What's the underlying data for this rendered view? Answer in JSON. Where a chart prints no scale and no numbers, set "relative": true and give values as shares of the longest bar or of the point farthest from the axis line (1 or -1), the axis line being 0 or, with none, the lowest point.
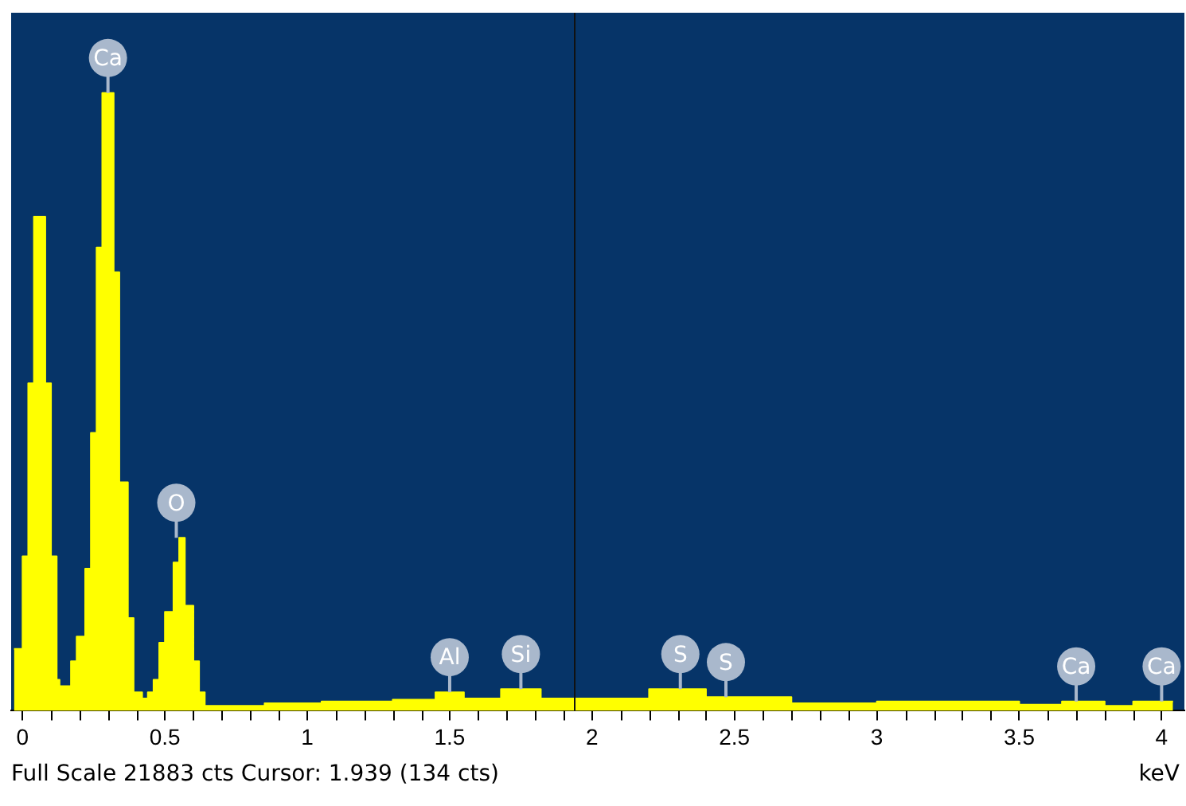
{
  "chart_data": {
    "type": "area",
    "relative": true,
    "xlabel": "keV",
    "color": "#ffff00",
    "marker": "none",
    "x": [
      -0.03,
      0,
      0,
      0.02,
      0.02,
      0.04,
      0.04,
      0.08,
      0.08,
      0.1,
      0.1,
      0.12,
      0.12,
      0.13,
      0.13,
      0.17,
      0.17,
      0.19,
      0.19,
      0.22,
      0.22,
      0.24,
      0.24,
      0.26,
      0.26,
      0.28,
      0.28,
      0.32,
      0.32,
      0.34,
      0.34,
      0.37,
      0.37,
      0.39,
      0.39,
      0.42,
      0.42,
      0.44,
      0.44,
      0.46,
      0.46,
      0.48,
      0.48,
      0.5,
      0.5,
      0.53,
      0.53,
      0.55,
      0.55,
      0.57,
      0.57,
      0.6,
      0.6,
      0.62,
      0.62,
      0.64,
      0.64,
      0.85,
      0.85,
      1.05,
      1.05,
      1.3,
      1.3,
      1.45,
      1.45,
      1.55,
      1.55,
      1.68,
      1.68,
      1.82,
      1.82,
      1.94,
      1.94,
      2.2,
      2.2,
      2.4,
      2.4,
      2.7,
      2.7,
      3,
      3,
      3.5,
      3.5,
      3.65,
      3.65,
      3.8,
      3.8,
      3.9,
      3.9,
      4.04
    ],
    "values": [
      0.1,
      0.1,
      0.25,
      0.25,
      0.53,
      0.53,
      0.8,
      0.8,
      0.53,
      0.53,
      0.25,
      0.25,
      0.05,
      0.05,
      0.04,
      0.04,
      0.08,
      0.08,
      0.12,
      0.12,
      0.23,
      0.23,
      0.45,
      0.45,
      0.75,
      0.75,
      1,
      1,
      0.71,
      0.71,
      0.37,
      0.37,
      0.15,
      0.15,
      0.03,
      0.03,
      0.02,
      0.02,
      0.03,
      0.03,
      0.05,
      0.05,
      0.11,
      0.11,
      0.16,
      0.16,
      0.24,
      0.24,
      0.28,
      0.28,
      0.17,
      0.17,
      0.08,
      0.08,
      0.03,
      0.03,
      0.008,
      0.008,
      0.012,
      0.012,
      0.015,
      0.015,
      0.018,
      0.018,
      0.03,
      0.03,
      0.02,
      0.02,
      0.035,
      0.035,
      0.02,
      0.02,
      0.02,
      0.02,
      0.035,
      0.035,
      0.022,
      0.022,
      0.012,
      0.012,
      0.015,
      0.015,
      0.01,
      0.01,
      0.015,
      0.015,
      0.008,
      0.008,
      0.015,
      0.015
    ],
    "xlim": [
      -0.04,
      4.08
    ],
    "xticks": [
      0,
      {
        "value": 0.1,
        "label": null
      },
      {
        "value": 0.2,
        "label": null
      },
      {
        "value": 0.3,
        "label": null
      },
      {
        "value": 0.4,
        "label": null
      },
      0.5,
      {
        "value": 0.6,
        "label": null
      },
      {
        "value": 0.7,
        "label": null
      },
      {
        "value": 0.8,
        "label": null
      },
      {
        "value": 0.9,
        "label": null
      },
      1,
      {
        "value": 1.1,
        "label": null
      },
      {
        "value": 1.2,
        "label": null
      },
      {
        "value": 1.3,
        "label": null
      },
      {
        "value": 1.4,
        "label": null
      },
      1.5,
      {
        "value": 1.6,
        "label": null
      },
      {
        "value": 1.7,
        "label": null
      },
      {
        "value": 1.8,
        "label": null
      },
      {
        "value": 1.9,
        "label": null
      },
      2,
      {
        "value": 2.1,
        "label": null
      },
      {
        "value": 2.2,
        "label": null
      },
      {
        "value": 2.3,
        "label": null
      },
      {
        "value": 2.4,
        "label": null
      },
      2.5,
      {
        "value": 2.6,
        "label": null
      },
      {
        "value": 2.7,
        "label": null
      },
      {
        "value": 2.8,
        "label": null
      },
      {
        "value": 2.9,
        "label": null
      },
      3,
      {
        "value": 3.1,
        "label": null
      },
      {
        "value": 3.2,
        "label": null
      },
      {
        "value": 3.3,
        "label": null
      },
      {
        "value": 3.4,
        "label": null
      },
      3.5,
      {
        "value": 3.6,
        "label": null
      },
      {
        "value": 3.7,
        "label": null
      },
      {
        "value": 3.8,
        "label": null
      },
      {
        "value": 3.9,
        "label": null
      },
      4
    ],
    "ref_lines": [
      {
        "axis": "x",
        "value": 1.939,
        "color": "#111111"
      }
    ],
    "annotations": [
      {
        "text": "Ca",
        "x": 0.3,
        "y": 1
      },
      {
        "text": "O",
        "x": 0.54,
        "y": 0.28
      },
      {
        "text": "Al",
        "x": 1.5,
        "y": 0.03
      },
      {
        "text": "Si",
        "x": 1.75,
        "y": 0.035
      },
      {
        "text": "S",
        "x": 2.31,
        "y": 0.035
      },
      {
        "text": "S",
        "x": 2.47,
        "y": 0.022
      },
      {
        "text": "Ca",
        "x": 3.7,
        "y": 0.015
      },
      {
        "text": "Ca",
        "x": 4.0,
        "y": 0.015
      },
      "Full Scale 21883 cts Cursor: 1.939  (134 cts)"
    ]
  }
}
